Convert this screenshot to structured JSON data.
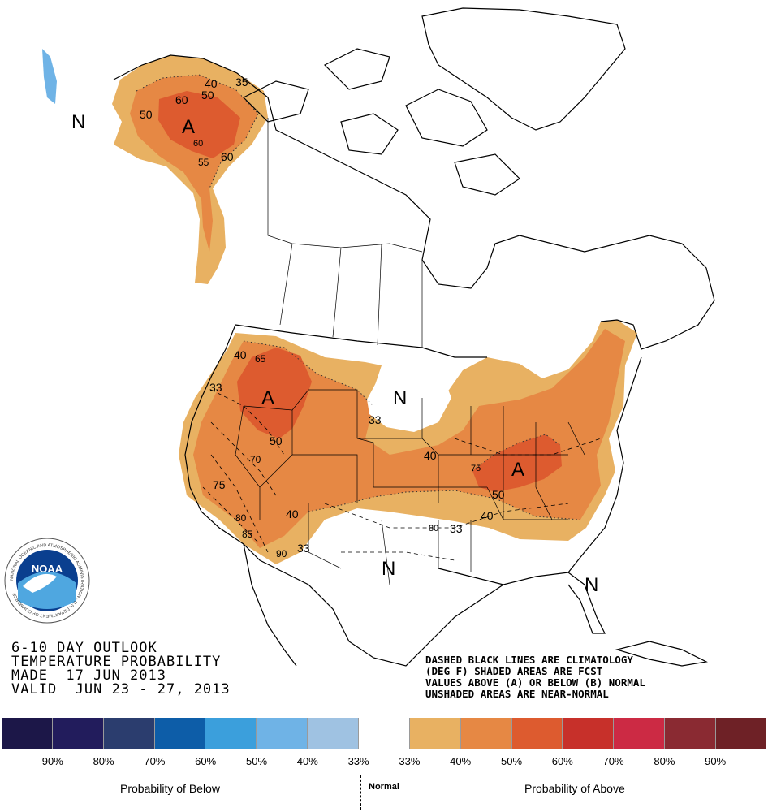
{
  "map": {
    "labels": [
      {
        "id": "alaska-anomaly",
        "text": "A"
      },
      {
        "id": "nw-anomaly",
        "text": "A"
      },
      {
        "id": "ohio-anomaly",
        "text": "A"
      },
      {
        "id": "aleutian-normal",
        "text": "N"
      },
      {
        "id": "plains-normal",
        "text": "N"
      },
      {
        "id": "south-normal",
        "text": "N"
      },
      {
        "id": "florida-normal",
        "text": "N"
      }
    ],
    "contour_labels": [
      "40",
      "35",
      "60",
      "50",
      "50",
      "60",
      "60",
      "55",
      "40",
      "65",
      "33",
      "50",
      "33",
      "70",
      "75",
      "80",
      "85",
      "90",
      "40",
      "33",
      "40",
      "75",
      "50",
      "40",
      "33",
      "80"
    ]
  },
  "logo": {
    "name": "NOAA",
    "ring_text": "NATIONAL OCEANIC AND ATMOSPHERIC ADMINISTRATION · U.S. DEPARTMENT OF COMMERCE"
  },
  "title": {
    "line1": "6-10 DAY OUTLOOK",
    "line2": "TEMPERATURE PROBABILITY",
    "line3": "MADE  17 JUN 2013",
    "line4": "VALID  JUN 23 - 27, 2013"
  },
  "notes": {
    "line1": "DASHED BLACK LINES ARE CLIMATOLOGY",
    "line2": "(DEG F) SHADED AREAS ARE FCST",
    "line3": "VALUES ABOVE (A) OR BELOW (B) NORMAL",
    "line4": "UNSHADED AREAS ARE NEAR-NORMAL"
  },
  "legend": {
    "colors": [
      "#1c1748",
      "#221c5c",
      "#2b3d6e",
      "#0d5da8",
      "#3b9fdc",
      "#6fb3e6",
      "#9fc2e2",
      "#ffffff",
      "#e8b162",
      "#e68844",
      "#dd5b2f",
      "#c7302a",
      "#cc2a44",
      "#8a2a32",
      "#6e2126"
    ],
    "labels": [
      "90%",
      "80%",
      "70%",
      "60%",
      "50%",
      "40%",
      "33%",
      "33%",
      "40%",
      "50%",
      "60%",
      "70%",
      "80%",
      "90%"
    ],
    "below_caption": "Probability of Below",
    "normal_caption": "Normal",
    "above_caption": "Probability of Above"
  }
}
